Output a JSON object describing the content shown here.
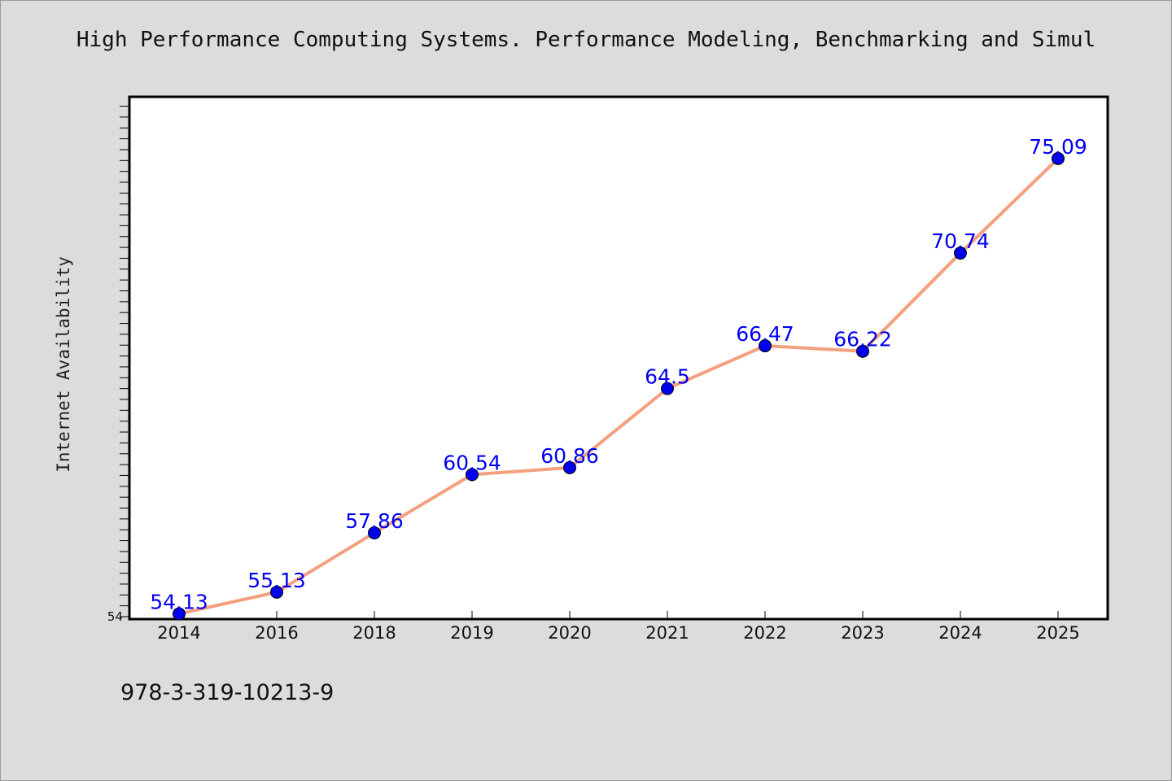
{
  "chart_data": {
    "type": "line",
    "title": "High Performance Computing Systems. Performance Modeling, Benchmarking and Simul",
    "xlabel": "",
    "ylabel": "Internet Availability",
    "categories": [
      "2014",
      "2016",
      "2018",
      "2019",
      "2020",
      "2021",
      "2022",
      "2023",
      "2024",
      "2025"
    ],
    "series": [
      {
        "values": [
          54.13,
          55.13,
          57.86,
          60.54,
          60.86,
          64.5,
          66.47,
          66.22,
          70.74,
          75.09
        ]
      }
    ],
    "data_labels": [
      "54.13",
      "55.13",
      "57.86",
      "60.54",
      "60.86",
      "64.5",
      "66.47",
      "66.22",
      "70.74",
      "75.09"
    ],
    "ylim": [
      54,
      78
    ],
    "y_major_tick_label": "54",
    "grid": false,
    "legend": "none",
    "colors": {
      "line": "#f4a07e",
      "marker": "#0000ee",
      "label": "#0000ee",
      "background": "#dcdcdc",
      "plot_background": "#ffffff"
    }
  },
  "footer": {
    "isbn": "978-3-319-10213-9"
  }
}
